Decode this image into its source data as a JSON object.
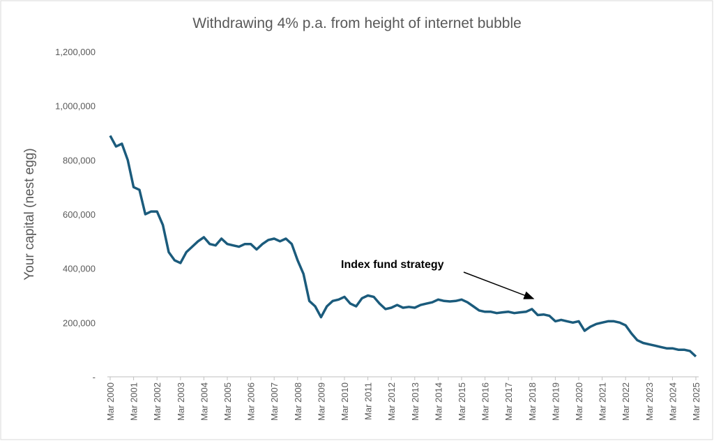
{
  "chart_data": {
    "type": "line",
    "title": "Withdrawing 4% p.a. from height of internet bubble",
    "y_label": "Your capital (nest egg)",
    "annotation": "Index fund strategy",
    "categories": [
      "Mar 2000",
      null,
      null,
      null,
      "Mar 2001",
      null,
      null,
      null,
      "Mar 2002",
      null,
      null,
      null,
      "Mar 2003",
      null,
      null,
      null,
      "Mar 2004",
      null,
      null,
      null,
      "Mar 2005",
      null,
      null,
      null,
      "Mar 2006",
      null,
      null,
      null,
      "Mar 2007",
      null,
      null,
      null,
      "Mar 2008",
      null,
      null,
      null,
      "Mar 2009",
      null,
      null,
      null,
      "Mar 2010",
      null,
      null,
      null,
      "Mar 2011",
      null,
      null,
      null,
      "Mar 2012",
      null,
      null,
      null,
      "Mar 2013",
      null,
      null,
      null,
      "Mar 2014",
      null,
      null,
      null,
      "Mar 2015",
      null,
      null,
      null,
      "Mar 2016",
      null,
      null,
      null,
      "Mar 2017",
      null,
      null,
      null,
      "Mar 2018",
      null,
      null,
      null,
      "Mar 2019",
      null,
      null,
      null,
      "Mar 2020",
      null,
      null,
      null,
      "Mar 2021",
      null,
      null,
      null,
      "Mar 2022",
      null,
      null,
      null,
      "Mar 2023",
      null,
      null,
      null,
      "Mar 2024",
      null,
      null,
      null,
      "Mar 2025"
    ],
    "series": [
      {
        "name": "Index fund strategy",
        "color": "#1b5b7c",
        "values": [
          890000,
          850000,
          860000,
          800000,
          700000,
          690000,
          600000,
          610000,
          610000,
          560000,
          460000,
          430000,
          420000,
          460000,
          480000,
          500000,
          515000,
          490000,
          485000,
          510000,
          490000,
          485000,
          480000,
          490000,
          490000,
          470000,
          490000,
          505000,
          510000,
          500000,
          510000,
          490000,
          430000,
          380000,
          280000,
          260000,
          220000,
          260000,
          280000,
          285000,
          295000,
          270000,
          260000,
          290000,
          300000,
          295000,
          270000,
          250000,
          255000,
          265000,
          255000,
          258000,
          255000,
          265000,
          270000,
          275000,
          285000,
          280000,
          278000,
          280000,
          285000,
          275000,
          260000,
          245000,
          240000,
          240000,
          235000,
          238000,
          240000,
          235000,
          238000,
          240000,
          250000,
          228000,
          230000,
          225000,
          205000,
          210000,
          205000,
          200000,
          205000,
          170000,
          185000,
          195000,
          200000,
          205000,
          205000,
          200000,
          190000,
          160000,
          135000,
          125000,
          120000,
          115000,
          110000,
          105000,
          105000,
          100000,
          100000,
          95000,
          75000
        ]
      }
    ],
    "ylim": [
      0,
      1200000
    ],
    "yticks": [
      {
        "value": 0,
        "label": "-"
      },
      {
        "value": 200000,
        "label": "200,000"
      },
      {
        "value": 400000,
        "label": "400,000"
      },
      {
        "value": 600000,
        "label": "600,000"
      },
      {
        "value": 800000,
        "label": "800,000"
      },
      {
        "value": 1000000,
        "label": "1,000,000"
      },
      {
        "value": 1200000,
        "label": "1,200,000"
      }
    ],
    "grid": false
  }
}
